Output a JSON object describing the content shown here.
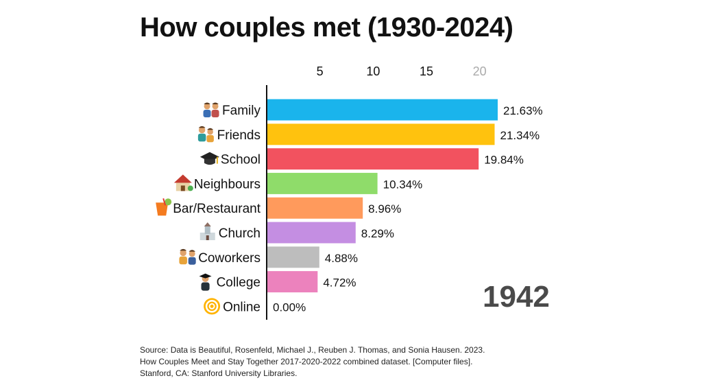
{
  "chart_data": {
    "type": "bar",
    "orientation": "horizontal",
    "title": "How couples met (1930-2024)",
    "categories": [
      "Family",
      "Friends",
      "School",
      "Neighbours",
      "Bar/Restaurant",
      "Church",
      "Coworkers",
      "College",
      "Online"
    ],
    "values": [
      21.63,
      21.34,
      19.84,
      10.34,
      8.96,
      8.29,
      4.88,
      4.72,
      0.0
    ],
    "value_labels": [
      "21.63%",
      "21.34%",
      "19.84%",
      "10.34%",
      "8.96%",
      "8.29%",
      "4.88%",
      "4.72%",
      "0.00%"
    ],
    "category_icons": [
      "family-icon",
      "friends-icon",
      "graduation-cap-icon",
      "house-icon",
      "cocktail-icon",
      "church-icon",
      "coworkers-icon",
      "graduate-icon",
      "at-sign-icon"
    ],
    "colors": [
      "#1ab4ec",
      "#ffc20e",
      "#f2525f",
      "#8fdc6a",
      "#ff9a5c",
      "#c48ee2",
      "#bdbdbd",
      "#ec82bd",
      "#8fd0ff"
    ],
    "xticks": [
      5,
      10,
      15,
      20
    ],
    "xtick_labels": [
      "5",
      "10",
      "15",
      "20"
    ],
    "xlim": [
      0,
      21.63
    ],
    "xaxis_position": "top",
    "grid": false,
    "legend": "none",
    "year": "1942"
  },
  "source": {
    "lines": [
      "Source: Data is Beautiful, Rosenfeld, Michael J., Reuben J. Thomas, and Sonia Hausen. 2023.",
      "How Couples Meet and Stay Together 2017-2020-2022 combined dataset. [Computer files].",
      "Stanford, CA: Stanford University Libraries."
    ]
  }
}
